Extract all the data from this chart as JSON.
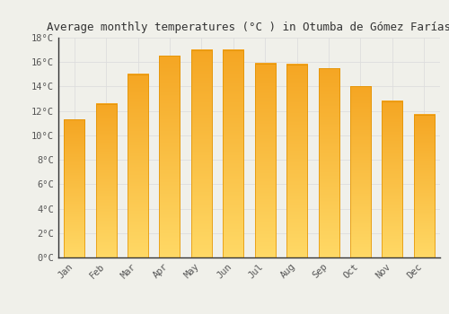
{
  "months": [
    "Jan",
    "Feb",
    "Mar",
    "Apr",
    "May",
    "Jun",
    "Jul",
    "Aug",
    "Sep",
    "Oct",
    "Nov",
    "Dec"
  ],
  "temperatures": [
    11.3,
    12.6,
    15.0,
    16.5,
    17.0,
    17.0,
    15.9,
    15.8,
    15.5,
    14.0,
    12.8,
    11.7
  ],
  "bar_color_top": "#F5A623",
  "bar_color_bottom": "#FFD966",
  "background_color": "#F0F0EA",
  "grid_color": "#DDDDDD",
  "title": "Average monthly temperatures (°C ) in Otumba de Gómez Farías",
  "title_fontsize": 9,
  "tick_fontsize": 7.5,
  "ylim": [
    0,
    18
  ],
  "yticks": [
    0,
    2,
    4,
    6,
    8,
    10,
    12,
    14,
    16,
    18
  ]
}
